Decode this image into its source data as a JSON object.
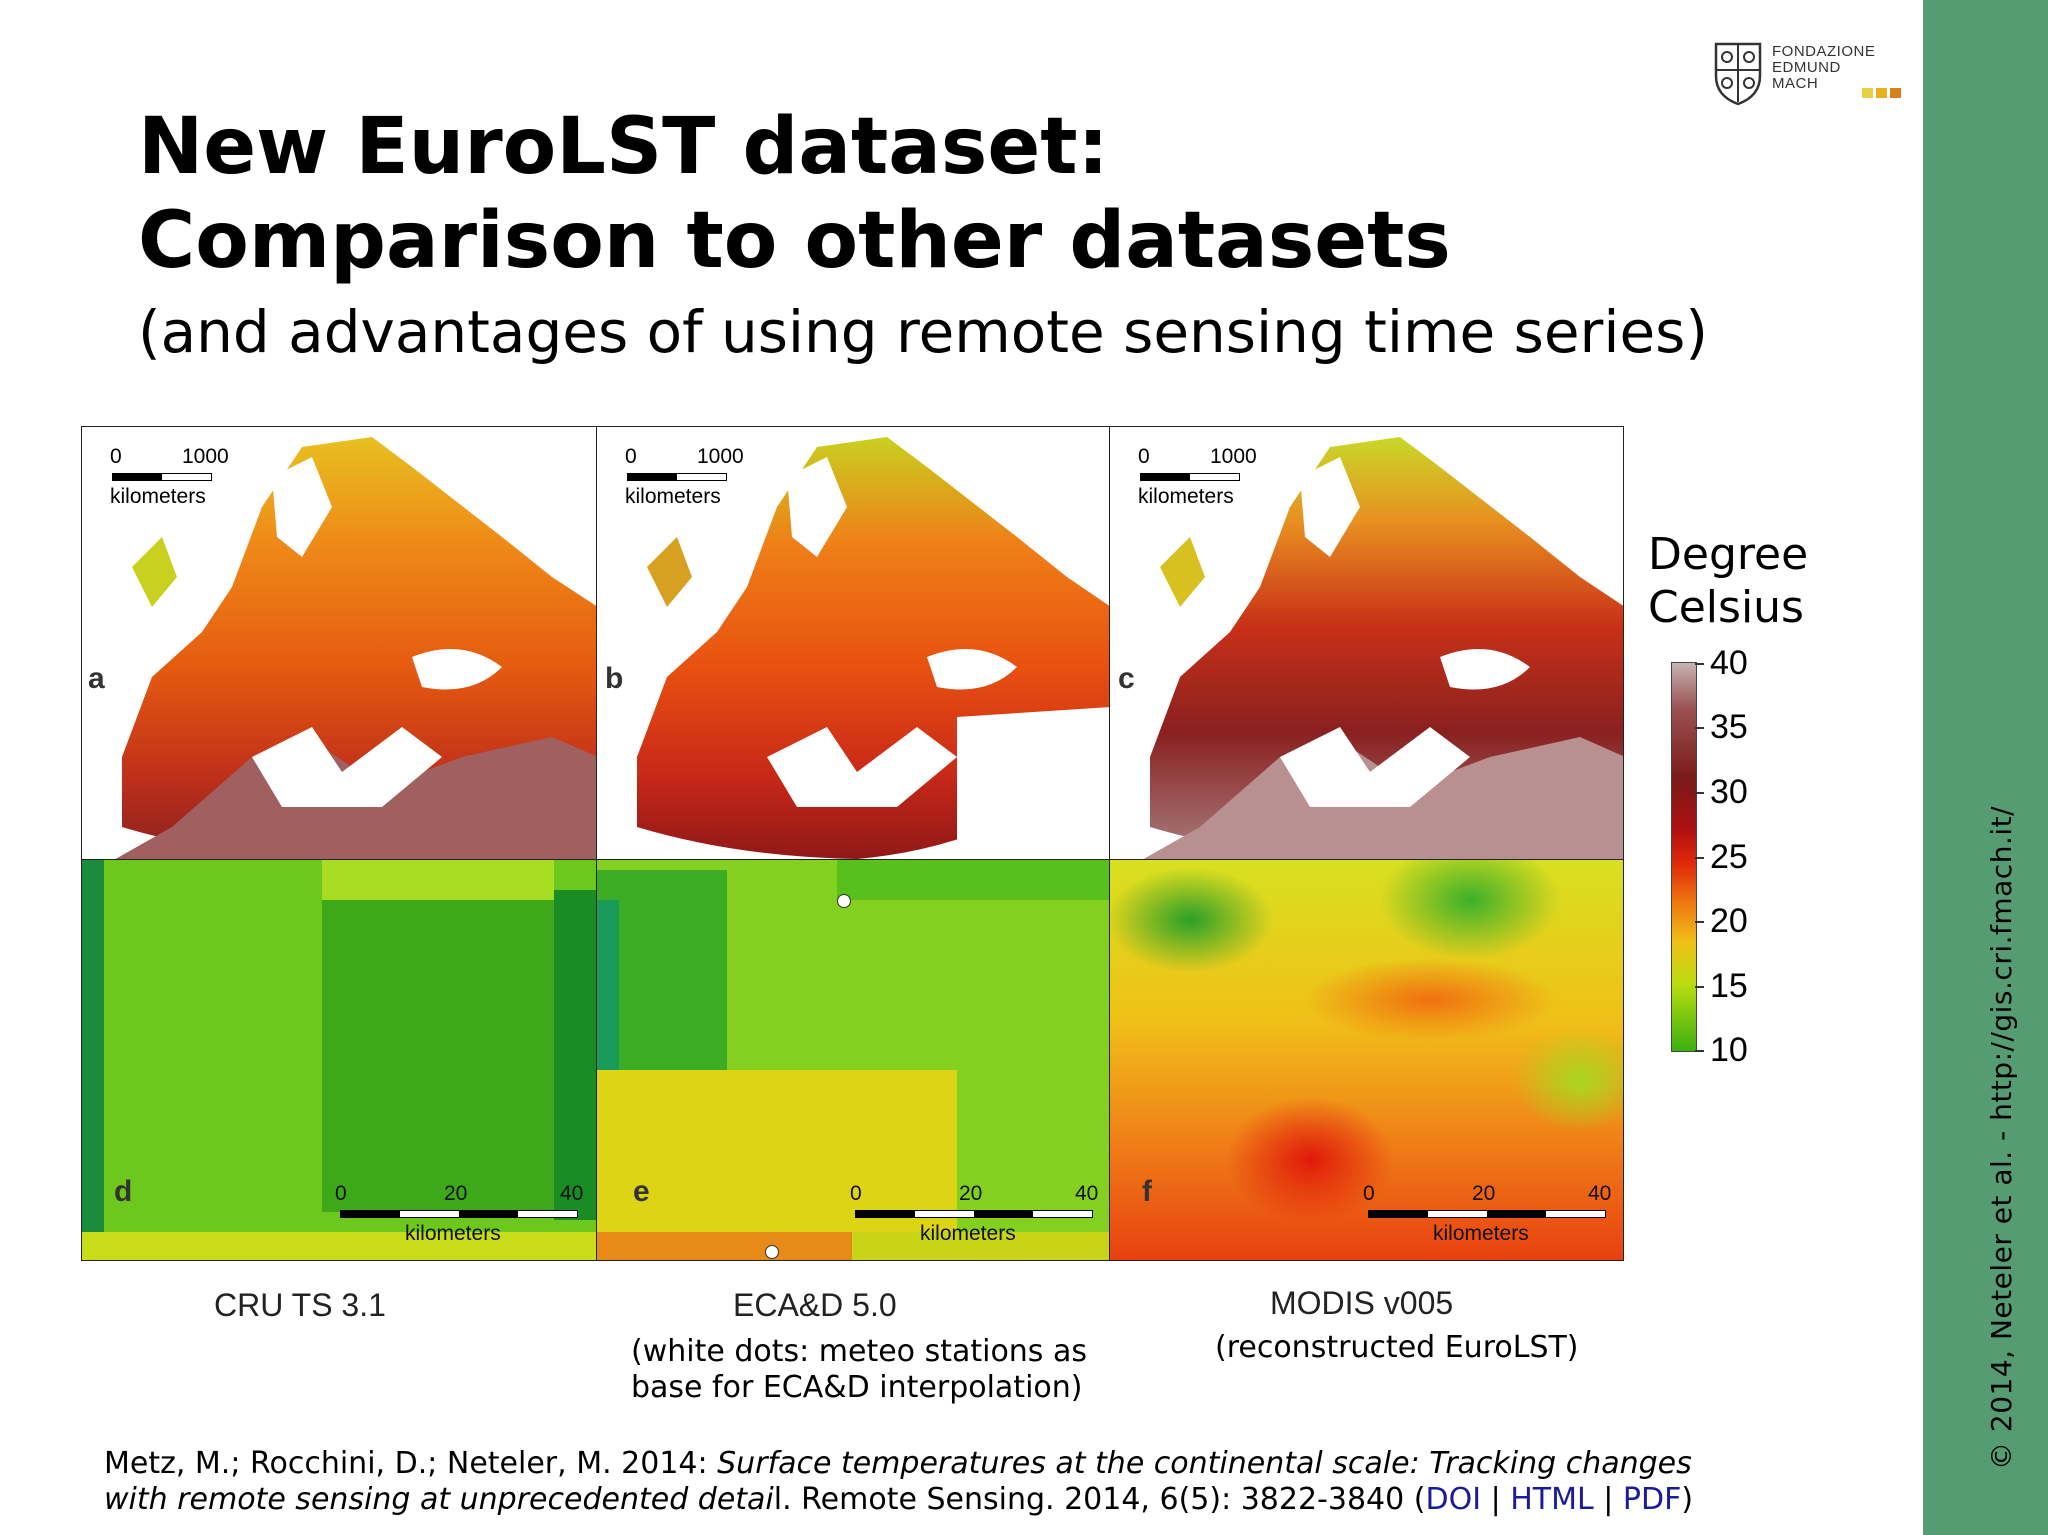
{
  "title": {
    "line1": "New EuroLST dataset:",
    "line2": "Comparison to other datasets",
    "subtitle": "(and advantages of using remote sensing time series)"
  },
  "logo": {
    "line1": "FONDAZIONE",
    "line2": "EDMUND",
    "line3": "MACH",
    "square_colors": [
      "#e8d040",
      "#e8b020",
      "#d88020"
    ]
  },
  "sidebar": {
    "text": "© 2014, Neteler et al. - http://gis.cri.fmach.it/",
    "color": "#569c73"
  },
  "maps": {
    "scale_0": "0",
    "scale_1000": "1000",
    "scale_unit": "kilometers",
    "panels": [
      {
        "label": "a"
      },
      {
        "label": "b"
      },
      {
        "label": "c"
      }
    ]
  },
  "zooms": {
    "scale_ticks": [
      "0",
      "20",
      "40"
    ],
    "scale_unit": "kilometers",
    "panels": [
      {
        "label": "d"
      },
      {
        "label": "e"
      },
      {
        "label": "f"
      }
    ]
  },
  "legend": {
    "title_line1": "Degree",
    "title_line2": "Celsius",
    "ticks": [
      "40",
      "35",
      "30",
      "25",
      "20",
      "15",
      "10"
    ]
  },
  "datasets": {
    "cru": "CRU TS 3.1",
    "ecad": "ECA&D 5.0",
    "ecad_note_line1": "(white dots: meteo stations as",
    "ecad_note_line2": "base for ECA&D interpolation)",
    "modis": "MODIS v005",
    "modis_note": "(reconstructed EuroLST)"
  },
  "citation": {
    "authors": "Metz, M.; Rocchini, D.; Neteler, M. 2014: ",
    "title_part1": "Surface temperatures at the continental scale: Tracking changes",
    "title_part2": "with remote sensing at unprecedented detai",
    "rest1": "l. Remote Sensing. 2014, 6(5): 3822-3840 (",
    "link_doi": "DOI",
    "sep1": " | ",
    "link_html": "HTML",
    "sep2": " | ",
    "link_pdf": "PDF",
    "close": ")"
  }
}
